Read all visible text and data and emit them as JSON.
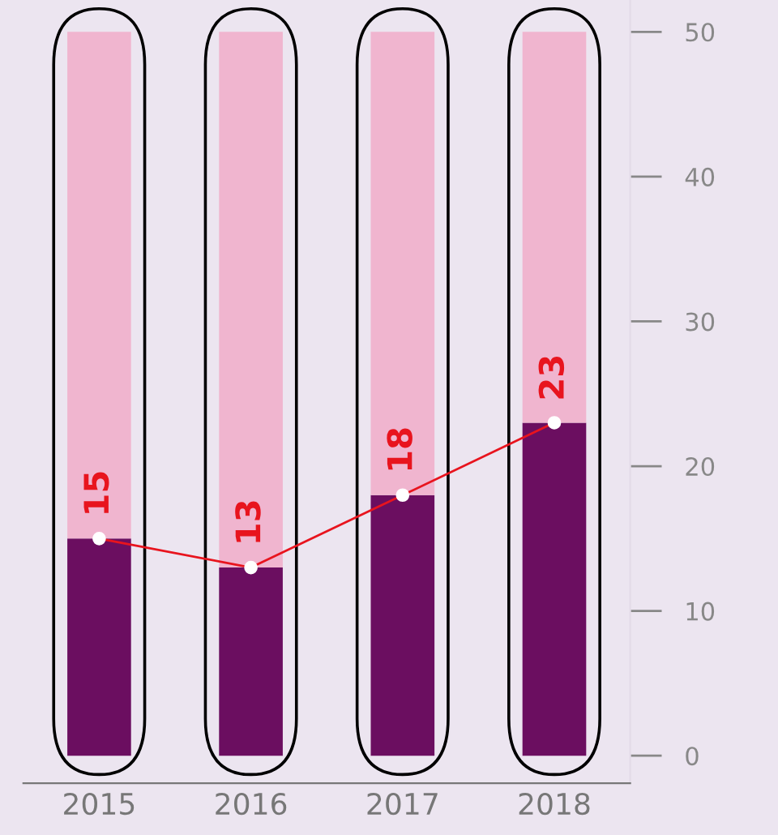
{
  "chart_data": {
    "type": "bar",
    "stacked": true,
    "categories": [
      "2015",
      "2016",
      "2017",
      "2018"
    ],
    "series": [
      {
        "color": "#6b0e60",
        "values": [
          15,
          13,
          18,
          23
        ]
      },
      {
        "color": "#f0b5cf",
        "values": [
          35,
          37,
          32,
          27
        ]
      },
      {
        "type": "line",
        "color": "#e8141e",
        "values": [
          15,
          13,
          18,
          23
        ],
        "value_labels": [
          "15",
          "13",
          "18",
          "23"
        ]
      }
    ],
    "ylim": [
      -1.9,
      52.2
    ],
    "yticks": [
      0,
      10,
      20,
      30,
      40,
      50
    ],
    "grid": false,
    "legend": false,
    "marker": "circle",
    "line_style": "solid"
  }
}
